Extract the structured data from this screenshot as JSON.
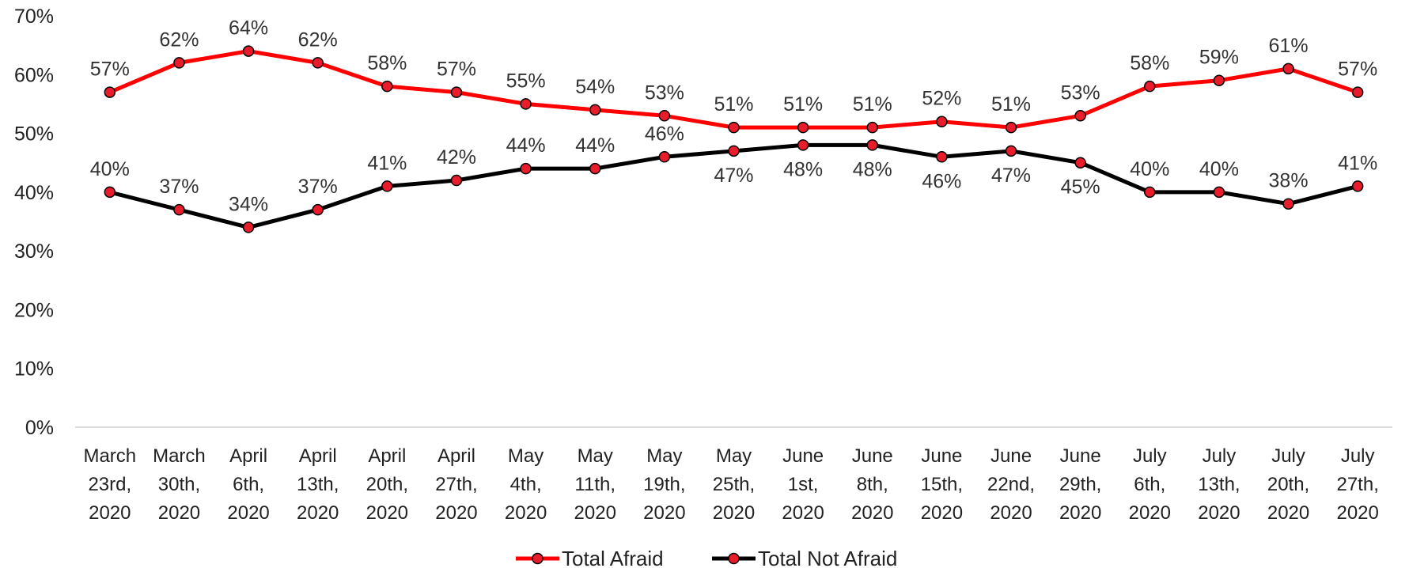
{
  "chart_data": {
    "type": "line",
    "title": "",
    "xlabel": "",
    "ylabel": "",
    "ylim": [
      0,
      70
    ],
    "y_ticks": [
      "0%",
      "10%",
      "20%",
      "30%",
      "40%",
      "50%",
      "60%",
      "70%"
    ],
    "grid": false,
    "legend_position": "bottom",
    "categories": [
      [
        "March",
        "23rd,",
        "2020"
      ],
      [
        "March",
        "30th,",
        "2020"
      ],
      [
        "April",
        "6th,",
        "2020"
      ],
      [
        "April",
        "13th,",
        "2020"
      ],
      [
        "April",
        "20th,",
        "2020"
      ],
      [
        "April",
        "27th,",
        "2020"
      ],
      [
        "May",
        "4th,",
        "2020"
      ],
      [
        "May",
        "11th,",
        "2020"
      ],
      [
        "May",
        "19th,",
        "2020"
      ],
      [
        "May",
        "25th,",
        "2020"
      ],
      [
        "June",
        "1st,",
        "2020"
      ],
      [
        "June",
        "8th,",
        "2020"
      ],
      [
        "June",
        "15th,",
        "2020"
      ],
      [
        "June",
        "22nd,",
        "2020"
      ],
      [
        "June",
        "29th,",
        "2020"
      ],
      [
        "July",
        "6th,",
        "2020"
      ],
      [
        "July",
        "13th,",
        "2020"
      ],
      [
        "July",
        "20th,",
        "2020"
      ],
      [
        "July",
        "27th,",
        "2020"
      ]
    ],
    "series": [
      {
        "name": "Total Afraid",
        "color": "#ff0000",
        "marker_color": "#e81c2a",
        "values": [
          57,
          62,
          64,
          62,
          58,
          57,
          55,
          54,
          53,
          51,
          51,
          51,
          52,
          51,
          53,
          58,
          59,
          61,
          57
        ],
        "labels": [
          "57%",
          "62%",
          "64%",
          "62%",
          "58%",
          "57%",
          "55%",
          "54%",
          "53%",
          "51%",
          "51%",
          "51%",
          "52%",
          "51%",
          "53%",
          "58%",
          "59%",
          "61%",
          "57%"
        ],
        "label_position": [
          "above",
          "above",
          "above",
          "above",
          "above",
          "above",
          "above",
          "above",
          "above",
          "above",
          "above",
          "above",
          "above",
          "above",
          "above",
          "above",
          "above",
          "above",
          "above"
        ]
      },
      {
        "name": "Total Not Afraid",
        "color": "#000000",
        "marker_color": "#e81c2a",
        "values": [
          40,
          37,
          34,
          37,
          41,
          42,
          44,
          44,
          46,
          47,
          48,
          48,
          46,
          47,
          45,
          40,
          40,
          38,
          41
        ],
        "labels": [
          "40%",
          "37%",
          "34%",
          "37%",
          "41%",
          "42%",
          "44%",
          "44%",
          "46%",
          "47%",
          "48%",
          "48%",
          "46%",
          "47%",
          "45%",
          "40%",
          "40%",
          "38%",
          "41%"
        ],
        "label_position": [
          "above",
          "above",
          "above",
          "above",
          "above",
          "above",
          "above",
          "above",
          "above",
          "below",
          "below",
          "below",
          "below",
          "below",
          "below",
          "above",
          "above",
          "above",
          "above"
        ]
      }
    ]
  }
}
